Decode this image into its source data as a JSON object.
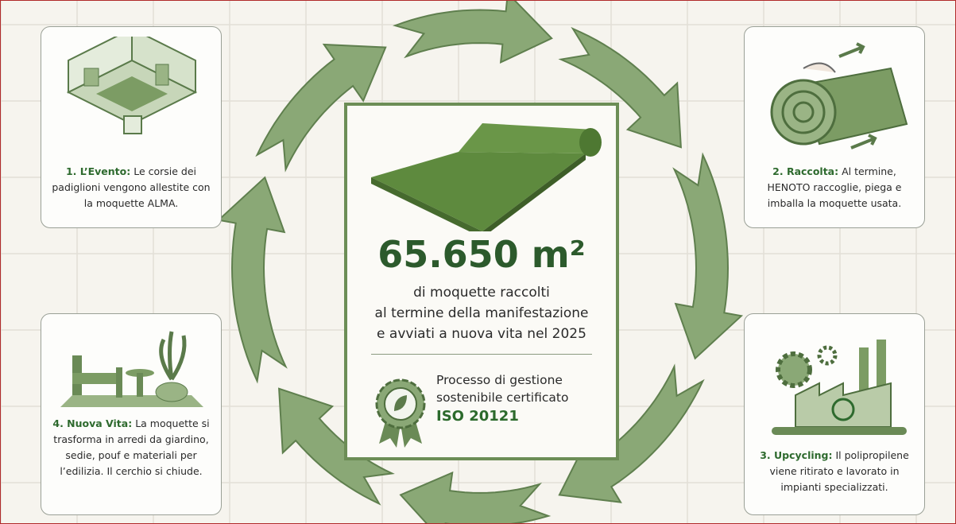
{
  "steps": [
    {
      "title": "1. L’Evento:",
      "text": "Le corsie dei padiglioni vengono allestite con la moquette ALMA."
    },
    {
      "title": "2. Raccolta:",
      "text": "Al termine, HENOTO raccoglie, piega e imballa la moquette usata."
    },
    {
      "title": "3. Upcycling:",
      "text": "Il polipropilene viene ritirato e lavorato in impianti specializzati."
    },
    {
      "title": "4. Nuova Vita:",
      "text": "La moquette si trasforma in arredi da giardino, sedie, pouf e materiali per l’edilizia. Il cerchio si chiude."
    }
  ],
  "center": {
    "headline": "65.650 m²",
    "description": [
      "di moquette raccolti",
      "al termine della manifestazione",
      "e avviati a nuova vita nel 2025"
    ],
    "certification": [
      "Processo di gestione",
      "sostenibile certificato"
    ],
    "standard": "ISO 20121"
  }
}
